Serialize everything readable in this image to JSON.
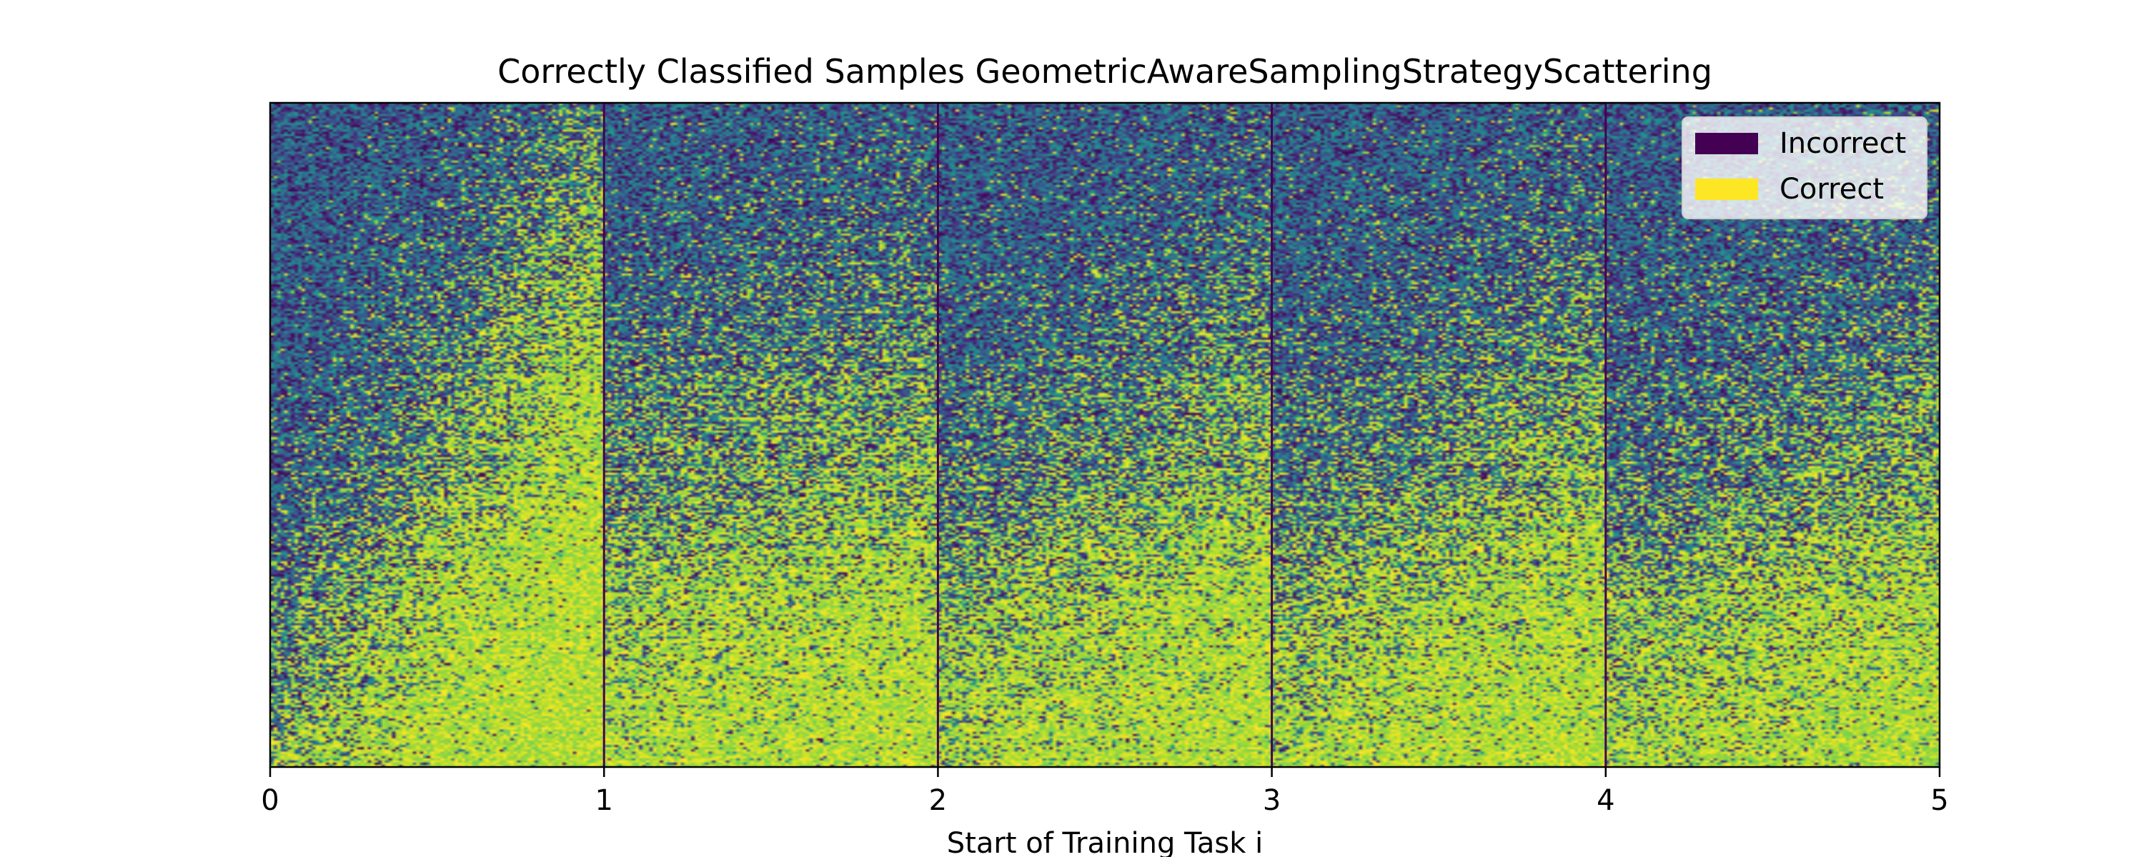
{
  "chart_data": {
    "type": "heatmap",
    "title": "Correctly Classified Samples GeometricAwareSamplingStrategyScattering",
    "xlabel": "Start of Training Task i",
    "ylabel": "",
    "xlim": [
      0,
      5
    ],
    "x_ticks": [
      0,
      1,
      2,
      3,
      4,
      5
    ],
    "x_tick_labels": [
      "0",
      "1",
      "2",
      "3",
      "4",
      "5"
    ],
    "colormap": "viridis",
    "grid": false,
    "legend_position": "top-right",
    "legend": [
      {
        "label": "Incorrect",
        "color": "#440154"
      },
      {
        "label": "Correct",
        "color": "#fde725"
      }
    ],
    "task_boundaries": [
      1,
      2,
      3,
      4
    ],
    "tasks": [
      {
        "task": 1,
        "x_range": [
          0,
          1
        ],
        "rows_correct_fraction_start": 0.05,
        "rows_correct_fraction_end": 0.85
      },
      {
        "task": 2,
        "x_range": [
          1,
          2
        ],
        "rows_correct_fraction_start": 0.35,
        "rows_correct_fraction_end": 0.55
      },
      {
        "task": 3,
        "x_range": [
          2,
          3
        ],
        "rows_correct_fraction_start": 0.25,
        "rows_correct_fraction_end": 0.55
      },
      {
        "task": 4,
        "x_range": [
          3,
          4
        ],
        "rows_correct_fraction_start": 0.25,
        "rows_correct_fraction_end": 0.55
      },
      {
        "task": 5,
        "x_range": [
          4,
          5
        ],
        "rows_correct_fraction_start": 0.25,
        "rows_correct_fraction_end": 0.5
      }
    ]
  }
}
